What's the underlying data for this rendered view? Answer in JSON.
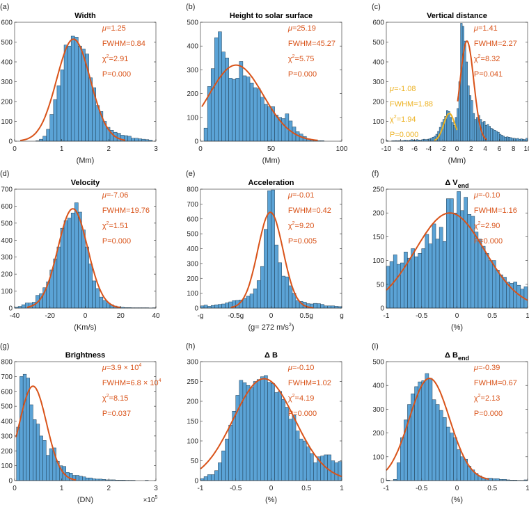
{
  "colors": {
    "bar": "#5ba3d6",
    "edge": "#1d3b52",
    "fit": "#d95319",
    "fit2": "#edb120",
    "axis": "#262626"
  },
  "annotation_labels": {
    "mu": "μ=",
    "fwhm": "FWHM=",
    "chi": "χ",
    "chi_sup": "2",
    "eq": "=",
    "p": "P="
  },
  "chart_data": [
    {
      "type": "bar",
      "panel": "(a)",
      "title": "Width",
      "xlabel": "(Mm)",
      "xlim": [
        0,
        3
      ],
      "ylim": [
        0,
        600
      ],
      "xticks": [
        {
          "v": 0,
          "l": "0"
        },
        {
          "v": 1,
          "l": "1"
        },
        {
          "v": 2,
          "l": "2"
        },
        {
          "v": 3,
          "l": "3"
        }
      ],
      "yticks": [
        0,
        100,
        200,
        300,
        400,
        500,
        600
      ],
      "bin_start": 0.45,
      "bin_width": 0.075,
      "values": [
        2,
        10,
        25,
        60,
        135,
        210,
        280,
        360,
        485,
        480,
        530,
        525,
        480,
        465,
        440,
        320,
        270,
        180,
        150,
        100,
        70,
        55,
        45,
        40,
        30,
        28,
        25,
        15,
        15,
        12,
        10,
        8,
        5
      ],
      "fits": [
        {
          "mu": 1.25,
          "fwhm": 0.84,
          "peak": 515,
          "range": [
            0.12,
            2.35
          ],
          "color": "fit",
          "annot": {
            "mu": "1.25",
            "fwhm": "0.84",
            "chi2": "2.91",
            "p": "0.000"
          }
        }
      ]
    },
    {
      "type": "bar",
      "panel": "(b)",
      "title": "Height to solar surface",
      "xlabel": "(Mm)",
      "xlim": [
        0,
        100
      ],
      "ylim": [
        0,
        500
      ],
      "xticks": [
        {
          "v": 0,
          "l": "0"
        },
        {
          "v": 50,
          "l": "50"
        },
        {
          "v": 100,
          "l": "100"
        }
      ],
      "yticks": [
        0,
        100,
        200,
        300,
        400,
        500
      ],
      "bin_start": 2.5,
      "bin_width": 2.5,
      "values": [
        55,
        230,
        305,
        435,
        460,
        375,
        350,
        265,
        260,
        265,
        335,
        275,
        270,
        245,
        225,
        220,
        185,
        155,
        145,
        145,
        110,
        100,
        95,
        115,
        85,
        60,
        40,
        30,
        20,
        8,
        5,
        4,
        2,
        2
      ],
      "fits": [
        {
          "mu": 25.19,
          "fwhm": 45.27,
          "peak": 320,
          "range": [
            1,
            83
          ],
          "color": "fit",
          "annot": {
            "mu": "25.19",
            "fwhm": "45.27",
            "chi2": "5.75",
            "p": "0.000"
          }
        }
      ]
    },
    {
      "type": "bar",
      "panel": "(c)",
      "title": "Vertical distance",
      "xlabel": "(Mm)",
      "xlim": [
        -10,
        10
      ],
      "ylim": [
        0,
        600
      ],
      "xticks": [
        {
          "v": -10,
          "l": "-10"
        },
        {
          "v": -8,
          "l": "-8"
        },
        {
          "v": -6,
          "l": "-6"
        },
        {
          "v": -4,
          "l": "-4"
        },
        {
          "v": -2,
          "l": "-2"
        },
        {
          "v": 0,
          "l": "0"
        },
        {
          "v": 2,
          "l": "2"
        },
        {
          "v": 4,
          "l": "4"
        },
        {
          "v": 6,
          "l": "6"
        },
        {
          "v": 8,
          "l": "8"
        },
        {
          "v": 10,
          "l": "10"
        }
      ],
      "yticks": [
        0,
        100,
        200,
        300,
        400,
        500,
        600
      ],
      "bin_start": -10,
      "bin_width": 0.25,
      "values": [
        3,
        0,
        0,
        2,
        2,
        3,
        2,
        3,
        2,
        3,
        5,
        4,
        3,
        5,
        8,
        6,
        5,
        8,
        6,
        5,
        8,
        10,
        8,
        10,
        12,
        15,
        20,
        25,
        35,
        50,
        70,
        95,
        110,
        125,
        155,
        150,
        120,
        95,
        80,
        120,
        165,
        300,
        595,
        580,
        505,
        400,
        280,
        230,
        205,
        140,
        110,
        120,
        130,
        110,
        95,
        100,
        80,
        85,
        75,
        65,
        60,
        55,
        50,
        45,
        35,
        30,
        25,
        20,
        22,
        20,
        18,
        15,
        15,
        12,
        14,
        10,
        12,
        10,
        8,
        15
      ],
      "fits": [
        {
          "mu": 1.41,
          "fwhm": 2.27,
          "peak": 505,
          "range": [
            0.1,
            4.2
          ],
          "color": "fit",
          "annot": {
            "mu": "1.41",
            "fwhm": "2.27",
            "chi2": "8.32",
            "p": "0.041"
          }
        },
        {
          "mu": -1.08,
          "fwhm": 1.88,
          "peak": 140,
          "range": [
            -3.2,
            0
          ],
          "color": "fit2",
          "annot_pos": "left",
          "annot": {
            "mu": "-1.08",
            "fwhm": "1.88",
            "chi2": "1.94",
            "p": "0.000"
          }
        }
      ]
    },
    {
      "type": "bar",
      "panel": "(d)",
      "title": "Velocity",
      "xlabel": "(Km/s)",
      "xlim": [
        -40,
        40
      ],
      "ylim": [
        0,
        700
      ],
      "xticks": [
        {
          "v": -40,
          "l": "-40"
        },
        {
          "v": -20,
          "l": "-20"
        },
        {
          "v": 0,
          "l": "0"
        },
        {
          "v": 20,
          "l": "20"
        },
        {
          "v": 40,
          "l": "40"
        }
      ],
      "yticks": [
        0,
        100,
        200,
        300,
        400,
        500,
        600,
        700
      ],
      "bin_start": -40,
      "bin_width": 2,
      "values": [
        5,
        10,
        20,
        30,
        30,
        35,
        75,
        85,
        120,
        155,
        225,
        290,
        360,
        470,
        515,
        530,
        560,
        620,
        565,
        460,
        360,
        260,
        160,
        115,
        65,
        45,
        30,
        20,
        12,
        8,
        5,
        3,
        3,
        2,
        2,
        2,
        2,
        2,
        1,
        2
      ],
      "fits": [
        {
          "mu": -7.06,
          "fwhm": 19.76,
          "peak": 585,
          "range": [
            -33,
            20
          ],
          "color": "fit",
          "annot": {
            "mu": "-7.06",
            "fwhm": "19.76",
            "chi2": "1.51",
            "p": "0.000"
          }
        }
      ]
    },
    {
      "type": "bar",
      "panel": "(e)",
      "title": "Acceleration",
      "xlabel": "(g= 272 m/s",
      "xlabel_sup": "2",
      "xlabel_tail": ")",
      "xlim": [
        -1,
        1
      ],
      "ylim": [
        0,
        800
      ],
      "xticks": [
        {
          "v": -1,
          "l": "-g"
        },
        {
          "v": -0.5,
          "l": "-0.5g"
        },
        {
          "v": 0,
          "l": "0"
        },
        {
          "v": 0.5,
          "l": "0.5g"
        },
        {
          "v": 1,
          "l": "g"
        }
      ],
      "yticks": [
        0,
        100,
        200,
        300,
        400,
        500,
        600,
        700,
        800
      ],
      "bin_start": -1,
      "bin_width": 0.05,
      "values": [
        15,
        20,
        12,
        18,
        22,
        25,
        28,
        35,
        42,
        50,
        52,
        55,
        65,
        80,
        95,
        130,
        185,
        280,
        530,
        790,
        795,
        425,
        305,
        215,
        210,
        150,
        100,
        50,
        45,
        40,
        30,
        28,
        32,
        30,
        25,
        15,
        15,
        15,
        12,
        10
      ],
      "fits": [
        {
          "mu": -0.01,
          "fwhm": 0.42,
          "peak": 645,
          "range": [
            -0.57,
            0.6
          ],
          "color": "fit",
          "annot": {
            "mu": "-0.01",
            "fwhm": "0.42",
            "chi2": "9.20",
            "p": "0.005"
          }
        }
      ]
    },
    {
      "type": "bar",
      "panel": "(f)",
      "title": "Δ V",
      "title_sub": "end",
      "xlabel": "(%)",
      "xlim": [
        -1,
        1
      ],
      "ylim": [
        0,
        250
      ],
      "xticks": [
        {
          "v": -1,
          "l": "-1"
        },
        {
          "v": -0.5,
          "l": "-0.5"
        },
        {
          "v": 0,
          "l": "0"
        },
        {
          "v": 0.5,
          "l": "0.5"
        },
        {
          "v": 1,
          "l": "1"
        }
      ],
      "yticks": [
        0,
        50,
        100,
        150,
        200,
        250
      ],
      "bin_start": -1,
      "bin_width": 0.05,
      "values": [
        88,
        98,
        112,
        92,
        95,
        118,
        105,
        125,
        108,
        115,
        125,
        155,
        135,
        177,
        145,
        170,
        140,
        230,
        230,
        200,
        245,
        205,
        233,
        197,
        193,
        160,
        145,
        130,
        115,
        100,
        100,
        80,
        70,
        65,
        55,
        52,
        55,
        48,
        40,
        45
      ],
      "fits": [
        {
          "mu": -0.1,
          "fwhm": 1.16,
          "peak": 200,
          "range": [
            -1,
            1
          ],
          "color": "fit",
          "annot": {
            "mu": "-0.10",
            "fwhm": "1.16",
            "chi2": "2.90",
            "p": "0.000"
          }
        }
      ]
    },
    {
      "type": "bar",
      "panel": "(g)",
      "title": "Brightness",
      "xlabel": "(DN)",
      "x_multiplier": "×10",
      "x_multiplier_sup": "5",
      "xlim": [
        0,
        3
      ],
      "ylim": [
        0,
        800
      ],
      "xticks": [
        {
          "v": 0,
          "l": "0"
        },
        {
          "v": 1,
          "l": "1"
        },
        {
          "v": 2,
          "l": "2"
        },
        {
          "v": 3,
          "l": "3"
        }
      ],
      "yticks": [
        0,
        100,
        200,
        300,
        400,
        500,
        600,
        700,
        800
      ],
      "bin_start": 0.04,
      "bin_width": 0.07,
      "values": [
        360,
        700,
        715,
        690,
        510,
        410,
        380,
        300,
        270,
        170,
        215,
        220,
        130,
        100,
        95,
        55,
        50,
        35,
        35,
        30,
        25,
        18,
        18,
        12,
        10,
        10,
        8,
        5,
        5,
        5,
        3,
        3,
        3,
        2,
        2,
        2,
        0,
        0,
        0,
        2
      ],
      "fits": [
        {
          "mu": 0.39,
          "fwhm": 0.68,
          "peak": 635,
          "range": [
            0.03,
            1.3
          ],
          "color": "fit",
          "annot": {
            "mu": "3.9 × 10",
            "mu_sup": "4",
            "fwhm": "6.8 × 10",
            "fwhm_sup": "4",
            "chi2": "8.15",
            "p": "0.037"
          }
        }
      ]
    },
    {
      "type": "bar",
      "panel": "(h)",
      "title": "Δ B",
      "xlabel": "(%)",
      "xlim": [
        -1,
        1
      ],
      "ylim": [
        0,
        300
      ],
      "xticks": [
        {
          "v": -1,
          "l": "-1"
        },
        {
          "v": -0.5,
          "l": "-0.5"
        },
        {
          "v": 0,
          "l": "0"
        },
        {
          "v": 0.5,
          "l": "0.5"
        },
        {
          "v": 1,
          "l": "1"
        }
      ],
      "yticks": [
        0,
        50,
        100,
        150,
        200,
        250,
        300
      ],
      "bin_start": -1,
      "bin_width": 0.05,
      "values": [
        5,
        10,
        15,
        15,
        25,
        45,
        75,
        105,
        140,
        175,
        215,
        253,
        247,
        240,
        235,
        250,
        255,
        262,
        265,
        248,
        245,
        222,
        225,
        205,
        185,
        155,
        165,
        125,
        105,
        100,
        85,
        68,
        45,
        60,
        62,
        65,
        65,
        50,
        45,
        48
      ],
      "fits": [
        {
          "mu": -0.1,
          "fwhm": 1.02,
          "peak": 257,
          "range": [
            -1,
            1
          ],
          "color": "fit",
          "annot": {
            "mu": "-0.10",
            "fwhm": "1.02",
            "chi2": "4.19",
            "p": "0.000"
          }
        }
      ]
    },
    {
      "type": "bar",
      "panel": "(i)",
      "title": "Δ B",
      "title_sub": "end",
      "xlabel": "(%)",
      "xlim": [
        -1,
        1
      ],
      "ylim": [
        0,
        500
      ],
      "xticks": [
        {
          "v": -1,
          "l": "-1"
        },
        {
          "v": -0.5,
          "l": "-0.5"
        },
        {
          "v": 0,
          "l": "0"
        },
        {
          "v": 0.5,
          "l": "0.5"
        },
        {
          "v": 1,
          "l": "1"
        }
      ],
      "yticks": [
        0,
        100,
        200,
        300,
        400,
        500
      ],
      "bin_start": -1,
      "bin_width": 0.05,
      "values": [
        2,
        0,
        5,
        75,
        180,
        255,
        320,
        365,
        395,
        415,
        420,
        450,
        430,
        340,
        320,
        295,
        265,
        225,
        200,
        180,
        130,
        100,
        90,
        60,
        45,
        30,
        20,
        12,
        10,
        10,
        8,
        8,
        5,
        5,
        3,
        2,
        2,
        1,
        1,
        3
      ],
      "fits": [
        {
          "mu": -0.39,
          "fwhm": 0.67,
          "peak": 430,
          "range": [
            -1,
            0.45
          ],
          "color": "fit",
          "annot": {
            "mu": "-0.39",
            "fwhm": "0.67",
            "chi2": "2.13",
            "p": "0.000"
          }
        }
      ]
    }
  ]
}
